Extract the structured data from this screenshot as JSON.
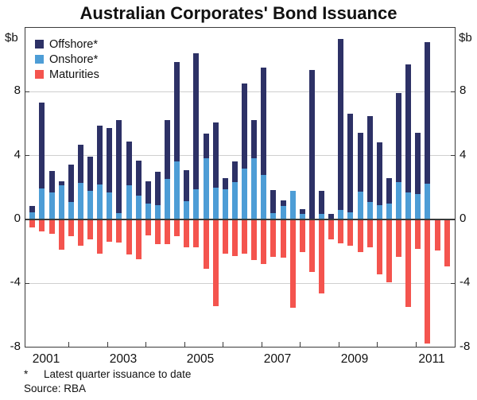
{
  "title": "Australian Corporates' Bond Issuance",
  "y_axis": {
    "unit_label_left": "$b",
    "unit_label_right": "$b",
    "tick_values": [
      8,
      4,
      0,
      -4,
      -8
    ]
  },
  "x_axis": {
    "year_labels": [
      "2001",
      "2003",
      "2005",
      "2007",
      "2009",
      "2011"
    ]
  },
  "legend": [
    {
      "name": "offshore",
      "label": "Offshore*",
      "color": "#2d3166"
    },
    {
      "name": "onshore",
      "label": "Onshore*",
      "color": "#4d9dd6"
    },
    {
      "name": "maturities",
      "label": "Maturities",
      "color": "#f4544e"
    }
  ],
  "footnotes": {
    "marker": "*",
    "text": "Latest quarter issuance to date",
    "source": "Source: RBA"
  },
  "colors": {
    "offshore": "#2d3166",
    "onshore": "#4d9dd6",
    "maturities": "#f4544e",
    "gridline": "#cfcfcf",
    "zero_line": "#3a3a3a",
    "frame": "#3a3a3a"
  },
  "chart_data": {
    "type": "bar",
    "stacked": true,
    "title": "Australian Corporates' Bond Issuance",
    "ylabel": "$b",
    "ylim": [
      -8,
      12
    ],
    "gridlines_at": [
      8,
      4,
      -4
    ],
    "legend_position": "top-left",
    "categories": [
      "2001 Q1",
      "2001 Q2",
      "2001 Q3",
      "2001 Q4",
      "2002 Q1",
      "2002 Q2",
      "2002 Q3",
      "2002 Q4",
      "2003 Q1",
      "2003 Q2",
      "2003 Q3",
      "2003 Q4",
      "2004 Q1",
      "2004 Q2",
      "2004 Q3",
      "2004 Q4",
      "2005 Q1",
      "2005 Q2",
      "2005 Q3",
      "2005 Q4",
      "2006 Q1",
      "2006 Q2",
      "2006 Q3",
      "2006 Q4",
      "2007 Q1",
      "2007 Q2",
      "2007 Q3",
      "2007 Q4",
      "2008 Q1",
      "2008 Q2",
      "2008 Q3",
      "2008 Q4",
      "2009 Q1",
      "2009 Q2",
      "2009 Q3",
      "2009 Q4",
      "2010 Q1",
      "2010 Q2",
      "2010 Q3",
      "2010 Q4",
      "2011 Q1",
      "2011 Q2",
      "2011 Q3",
      "2011 Q4"
    ],
    "series": [
      {
        "name": "Offshore*",
        "color": "#2d3166",
        "values": [
          0.4,
          5.35,
          1.35,
          0.25,
          2.35,
          2.4,
          2.15,
          3.65,
          4.0,
          5.8,
          2.75,
          2.2,
          1.4,
          2.1,
          3.65,
          6.2,
          1.95,
          8.5,
          1.5,
          4.05,
          0.7,
          1.3,
          5.3,
          2.35,
          6.7,
          1.45,
          0.35,
          0.0,
          0.3,
          9.3,
          1.45,
          0.35,
          10.7,
          6.15,
          3.65,
          5.35,
          3.95,
          1.6,
          5.55,
          8.0,
          3.8,
          8.85,
          0.0,
          0.0
        ]
      },
      {
        "name": "Onshore*",
        "color": "#4d9dd6",
        "values": [
          0.45,
          1.95,
          1.7,
          2.15,
          1.1,
          2.3,
          1.8,
          2.2,
          1.7,
          0.4,
          2.15,
          1.5,
          1.0,
          0.9,
          2.55,
          3.65,
          1.15,
          1.9,
          3.85,
          2.0,
          1.9,
          2.35,
          3.2,
          3.85,
          2.8,
          0.4,
          0.85,
          1.8,
          0.35,
          0.05,
          0.35,
          0.0,
          0.6,
          0.45,
          1.75,
          1.1,
          0.9,
          1.0,
          2.35,
          1.7,
          1.6,
          2.25,
          0.0,
          0.0
        ]
      },
      {
        "name": "Maturities",
        "color": "#f4544e",
        "values": [
          -0.45,
          -0.7,
          -0.85,
          -1.85,
          -1.0,
          -1.6,
          -1.2,
          -2.1,
          -1.35,
          -1.4,
          -2.15,
          -2.45,
          -0.95,
          -1.5,
          -1.5,
          -1.0,
          -1.7,
          -1.7,
          -3.05,
          -5.35,
          -2.1,
          -2.25,
          -2.1,
          -2.5,
          -2.75,
          -2.3,
          -2.35,
          -5.45,
          -2.0,
          -3.25,
          -4.6,
          -1.2,
          -1.45,
          -1.6,
          -2.0,
          -1.7,
          -3.4,
          -3.9,
          -2.3,
          -5.4,
          -1.8,
          -7.7,
          -1.9,
          -2.9
        ]
      }
    ]
  }
}
